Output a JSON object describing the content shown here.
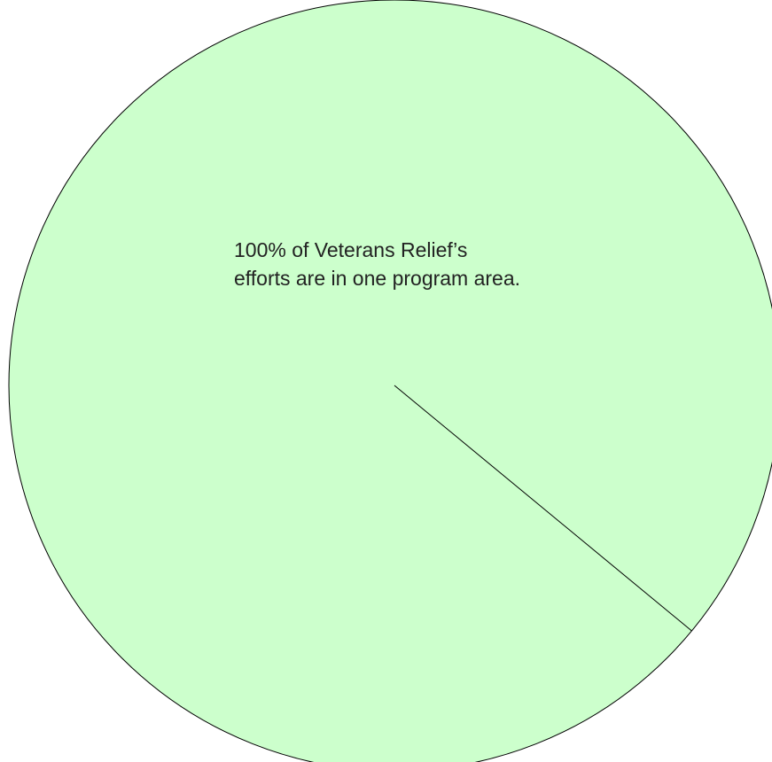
{
  "chart_data": {
    "type": "pie",
    "slices": [
      {
        "label": "",
        "value": 100,
        "color": "#ccffcc"
      }
    ],
    "annotation": {
      "line1": "100% of Veterans Relief’s",
      "line2": "efforts are in one program area."
    },
    "title": "",
    "legend": "none"
  },
  "colors": {
    "slice_fill": "#ccffcc",
    "outline": "#000000",
    "text": "#222222"
  }
}
